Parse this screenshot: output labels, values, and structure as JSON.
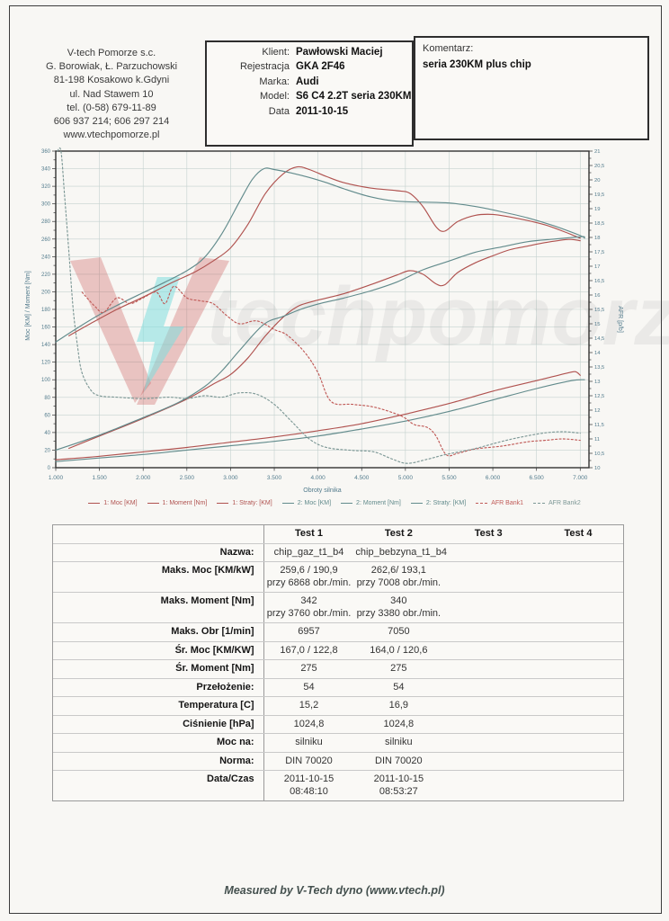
{
  "page": {
    "footer": "Measured by V-Tech dyno (www.vtech.pl)"
  },
  "header": {
    "company_lines": [
      "V-tech Pomorze s.c.",
      "G. Borowiak, Ł. Parzuchowski",
      "81-198 Kosakowo k.Gdyni",
      "ul. Nad Stawem 10",
      "tel. (0-58) 679-11-89",
      "606 937 214; 606 297 214",
      "www.vtechpomorze.pl"
    ],
    "client": {
      "fields": [
        {
          "label": "Klient:",
          "value": "Pawłowski Maciej"
        },
        {
          "label": "Rejestracja",
          "value": "GKA 2F46"
        },
        {
          "label": "Marka:",
          "value": "Audi"
        },
        {
          "label": "Model:",
          "value": "S6 C4 2.2T seria 230KM"
        },
        {
          "label": "Data",
          "value": "2011-10-15"
        }
      ]
    },
    "comment": {
      "label": "Komentarz:",
      "value": "seria 230KM plus chip"
    }
  },
  "chart_data": {
    "type": "line",
    "xlabel": "Obroty silnika",
    "ylabel_left": "Moc [KM] / Moment [Nm]",
    "ylabel_right": "AFR [p/b]",
    "x_range": [
      1000,
      7100
    ],
    "x_tick_values": [
      1000,
      1500,
      2000,
      2500,
      3000,
      3500,
      4000,
      4500,
      5000,
      5500,
      6000,
      6500,
      7000
    ],
    "x_ticks": [
      "1.000",
      "1.500",
      "2.000",
      "2.500",
      "3.000",
      "3.500",
      "4.000",
      "4.500",
      "5.000",
      "5.500",
      "6.000",
      "6.500",
      "7.000"
    ],
    "y_left_range": [
      0,
      360
    ],
    "y_left_step": 20,
    "y_left_ticks": [
      "360",
      "340",
      "320",
      "300",
      "280",
      "260",
      "240",
      "220",
      "200",
      "180",
      "160",
      "140",
      "120",
      "100",
      "80",
      "60",
      "40",
      "20",
      "0"
    ],
    "y_right_range": [
      10,
      21
    ],
    "y_right_step": 0.5,
    "y_right_ticks": [
      "21",
      "20,5",
      "20",
      "19,5",
      "19",
      "18,5",
      "18",
      "17,5",
      "17",
      "16,5",
      "16",
      "15,5",
      "15",
      "14,5",
      "14",
      "13,5",
      "13",
      "12,5",
      "12",
      "11,5",
      "11",
      "10,5",
      "10"
    ],
    "grid": true,
    "legend_position": "bottom",
    "colors": {
      "test1": "#b0524f",
      "test2": "#628b8c",
      "afr1": "#c05a57",
      "afr2": "#7d9896",
      "axis_text": "#527b8c",
      "grid": "#c4d2cf",
      "plot_border": "#333333"
    },
    "series": [
      {
        "name": "1: Moc [KM]",
        "color": "#b0524f",
        "style": "solid",
        "axis": "left",
        "points": [
          [
            1150,
            22
          ],
          [
            1500,
            36
          ],
          [
            2000,
            56
          ],
          [
            2500,
            78
          ],
          [
            2800,
            95
          ],
          [
            3000,
            106
          ],
          [
            3200,
            125
          ],
          [
            3400,
            150
          ],
          [
            3600,
            171
          ],
          [
            3760,
            183
          ],
          [
            3900,
            188
          ],
          [
            4100,
            193
          ],
          [
            4300,
            198
          ],
          [
            4600,
            208
          ],
          [
            4900,
            219
          ],
          [
            5050,
            224
          ],
          [
            5200,
            220
          ],
          [
            5350,
            209
          ],
          [
            5450,
            208
          ],
          [
            5600,
            222
          ],
          [
            5800,
            233
          ],
          [
            6000,
            241
          ],
          [
            6200,
            248
          ],
          [
            6400,
            252
          ],
          [
            6600,
            256
          ],
          [
            6868,
            259.6
          ],
          [
            7000,
            258
          ]
        ]
      },
      {
        "name": "1: Moment [Nm]",
        "color": "#b0524f",
        "style": "solid",
        "axis": "left",
        "points": [
          [
            1150,
            150
          ],
          [
            1400,
            164
          ],
          [
            1700,
            180
          ],
          [
            2000,
            194
          ],
          [
            2300,
            209
          ],
          [
            2600,
            223
          ],
          [
            2800,
            235
          ],
          [
            3000,
            250
          ],
          [
            3200,
            277
          ],
          [
            3400,
            312
          ],
          [
            3600,
            334
          ],
          [
            3760,
            342
          ],
          [
            3900,
            339
          ],
          [
            4100,
            331
          ],
          [
            4300,
            324
          ],
          [
            4600,
            318
          ],
          [
            4900,
            315
          ],
          [
            5050,
            312
          ],
          [
            5200,
            297
          ],
          [
            5350,
            274
          ],
          [
            5450,
            269
          ],
          [
            5600,
            280
          ],
          [
            5800,
            287
          ],
          [
            6000,
            288
          ],
          [
            6200,
            285
          ],
          [
            6400,
            281
          ],
          [
            6600,
            276
          ],
          [
            6800,
            269
          ],
          [
            7000,
            261
          ]
        ]
      },
      {
        "name": "1: Straty: [KM]",
        "color": "#b0524f",
        "style": "solid",
        "axis": "left",
        "points": [
          [
            1000,
            9
          ],
          [
            1500,
            13
          ],
          [
            2000,
            18
          ],
          [
            2500,
            23
          ],
          [
            3000,
            29
          ],
          [
            3500,
            35
          ],
          [
            4000,
            42
          ],
          [
            4500,
            50
          ],
          [
            5000,
            61
          ],
          [
            5500,
            73
          ],
          [
            6000,
            87
          ],
          [
            6500,
            99
          ],
          [
            6868,
            108
          ],
          [
            6950,
            109
          ],
          [
            7000,
            105
          ]
        ]
      },
      {
        "name": "2: Moc [KM]",
        "color": "#628b8c",
        "style": "solid",
        "axis": "left",
        "points": [
          [
            1000,
            20
          ],
          [
            1500,
            37
          ],
          [
            2000,
            57
          ],
          [
            2400,
            74
          ],
          [
            2700,
            92
          ],
          [
            2900,
            110
          ],
          [
            3100,
            133
          ],
          [
            3380,
            163
          ],
          [
            3600,
            172
          ],
          [
            3800,
            180
          ],
          [
            4000,
            186
          ],
          [
            4300,
            193
          ],
          [
            4600,
            201
          ],
          [
            4900,
            211
          ],
          [
            5200,
            225
          ],
          [
            5500,
            235
          ],
          [
            5800,
            245
          ],
          [
            6100,
            251
          ],
          [
            6400,
            257
          ],
          [
            6700,
            260
          ],
          [
            7008,
            262.6
          ],
          [
            7050,
            262
          ]
        ]
      },
      {
        "name": "2: Moment [Nm]",
        "color": "#628b8c",
        "style": "solid",
        "axis": "left",
        "points": [
          [
            1000,
            143
          ],
          [
            1250,
            159
          ],
          [
            1500,
            174
          ],
          [
            1750,
            187
          ],
          [
            2000,
            199
          ],
          [
            2250,
            211
          ],
          [
            2500,
            224
          ],
          [
            2700,
            239
          ],
          [
            2900,
            266
          ],
          [
            3100,
            302
          ],
          [
            3250,
            328
          ],
          [
            3380,
            340
          ],
          [
            3500,
            339
          ],
          [
            3700,
            335
          ],
          [
            3900,
            330
          ],
          [
            4100,
            324
          ],
          [
            4300,
            317
          ],
          [
            4600,
            308
          ],
          [
            4900,
            303
          ],
          [
            5200,
            302
          ],
          [
            5500,
            301
          ],
          [
            5800,
            297
          ],
          [
            6100,
            291
          ],
          [
            6400,
            284
          ],
          [
            6700,
            275
          ],
          [
            7000,
            264
          ],
          [
            7050,
            261
          ]
        ]
      },
      {
        "name": "2: Straty: [KM]",
        "color": "#628b8c",
        "style": "solid",
        "axis": "left",
        "points": [
          [
            1000,
            7
          ],
          [
            1500,
            11
          ],
          [
            2000,
            15
          ],
          [
            2500,
            20
          ],
          [
            3000,
            25
          ],
          [
            3500,
            30
          ],
          [
            4000,
            36
          ],
          [
            4500,
            44
          ],
          [
            5000,
            53
          ],
          [
            5500,
            64
          ],
          [
            6000,
            77
          ],
          [
            6500,
            90
          ],
          [
            6900,
            99
          ],
          [
            7050,
            100
          ]
        ]
      },
      {
        "name": "AFR Bank1",
        "color": "#c05a57",
        "style": "dashed",
        "axis": "right",
        "points": [
          [
            1300,
            16.1
          ],
          [
            1450,
            15.6
          ],
          [
            1550,
            15.4
          ],
          [
            1700,
            15.9
          ],
          [
            1850,
            15.7
          ],
          [
            2000,
            15.9
          ],
          [
            2150,
            16.1
          ],
          [
            2250,
            15.7
          ],
          [
            2350,
            16.3
          ],
          [
            2500,
            15.9
          ],
          [
            2650,
            15.8
          ],
          [
            2800,
            15.7
          ],
          [
            2950,
            15.3
          ],
          [
            3100,
            15.0
          ],
          [
            3300,
            15.1
          ],
          [
            3500,
            14.8
          ],
          [
            3650,
            14.6
          ],
          [
            3850,
            14.0
          ],
          [
            4000,
            13.3
          ],
          [
            4150,
            12.3
          ],
          [
            4400,
            12.2
          ],
          [
            4650,
            12.1
          ],
          [
            4950,
            11.8
          ],
          [
            5100,
            11.5
          ],
          [
            5250,
            11.4
          ],
          [
            5350,
            11.1
          ],
          [
            5467,
            10.45
          ],
          [
            5600,
            10.5
          ],
          [
            5800,
            10.65
          ],
          [
            6100,
            10.75
          ],
          [
            6400,
            10.9
          ],
          [
            6600,
            10.95
          ],
          [
            6800,
            11.0
          ],
          [
            7000,
            10.95
          ]
        ]
      },
      {
        "name": "AFR Bank2",
        "color": "#7d9896",
        "style": "dashed",
        "axis": "right",
        "points": [
          [
            1020,
            21
          ],
          [
            1060,
            21
          ],
          [
            1100,
            19.5
          ],
          [
            1150,
            17.5
          ],
          [
            1200,
            15.5
          ],
          [
            1250,
            14.2
          ],
          [
            1300,
            13.3
          ],
          [
            1400,
            12.7
          ],
          [
            1500,
            12.5
          ],
          [
            1700,
            12.45
          ],
          [
            2000,
            12.4
          ],
          [
            2300,
            12.45
          ],
          [
            2500,
            12.4
          ],
          [
            2700,
            12.5
          ],
          [
            2900,
            12.45
          ],
          [
            3100,
            12.6
          ],
          [
            3300,
            12.55
          ],
          [
            3500,
            12.2
          ],
          [
            3700,
            11.6
          ],
          [
            3900,
            11.0
          ],
          [
            4100,
            10.7
          ],
          [
            4400,
            10.6
          ],
          [
            4640,
            10.55
          ],
          [
            4850,
            10.3
          ],
          [
            5023,
            10.15
          ],
          [
            5260,
            10.3
          ],
          [
            5450,
            10.45
          ],
          [
            5778,
            10.65
          ],
          [
            6088,
            10.9
          ],
          [
            6300,
            11.05
          ],
          [
            6575,
            11.2
          ],
          [
            6800,
            11.25
          ],
          [
            7000,
            11.2
          ]
        ]
      }
    ],
    "watermark": {
      "ghost_text": "techpomorze",
      "v_red": "#c23c3c",
      "bolt_cyan": "#7fdede"
    }
  },
  "table": {
    "headers": [
      "",
      "Test 1",
      "Test 2",
      "Test 3",
      "Test 4"
    ],
    "rows": [
      {
        "label": "Nazwa:",
        "values": [
          "chip_gaz_t1_b4",
          "chip_bebzyna_t1_b4",
          "",
          ""
        ]
      },
      {
        "label": "Maks. Moc [KM/kW]",
        "values": [
          "259,6 / 190,9\nprzy 6868 obr./min.",
          "262,6/ 193,1\nprzy 7008 obr./min.",
          "",
          ""
        ]
      },
      {
        "label": "Maks. Moment [Nm]",
        "values": [
          "342\nprzy 3760 obr./min.",
          "340\nprzy 3380 obr./min.",
          "",
          ""
        ]
      },
      {
        "label": "Maks. Obr [1/min]",
        "values": [
          "6957",
          "7050",
          "",
          ""
        ]
      },
      {
        "label": "Śr. Moc [KM/KW]",
        "values": [
          "167,0 / 122,8",
          "164,0 / 120,6",
          "",
          ""
        ]
      },
      {
        "label": "Śr. Moment [Nm]",
        "values": [
          "275",
          "275",
          "",
          ""
        ]
      },
      {
        "label": "Przełożenie:",
        "values": [
          "54",
          "54",
          "",
          ""
        ]
      },
      {
        "label": "Temperatura [C]",
        "values": [
          "15,2",
          "16,9",
          "",
          ""
        ]
      },
      {
        "label": "Ciśnienie [hPa]",
        "values": [
          "1024,8",
          "1024,8",
          "",
          ""
        ]
      },
      {
        "label": "Moc na:",
        "values": [
          "silniku",
          "silniku",
          "",
          ""
        ]
      },
      {
        "label": "Norma:",
        "values": [
          "DIN 70020",
          "DIN 70020",
          "",
          ""
        ]
      },
      {
        "label": "Data/Czas",
        "values": [
          "2011-10-15\n08:48:10",
          "2011-10-15\n08:53:27",
          "",
          ""
        ]
      }
    ]
  }
}
